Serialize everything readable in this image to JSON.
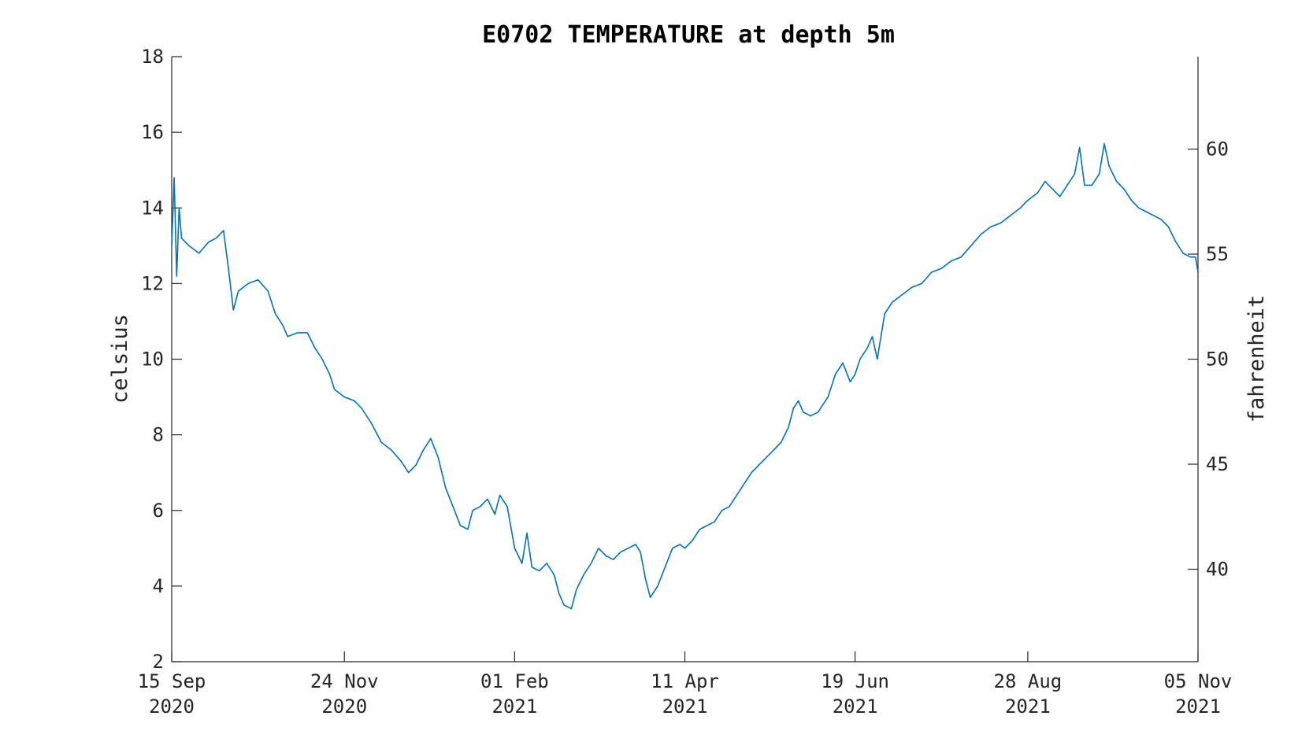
{
  "chart_data": {
    "type": "line",
    "title": "E0702 TEMPERATURE at depth 5m",
    "ylabel": "celsius",
    "y2label": "fahrenheit",
    "xlim": [
      "2020-09-15",
      "2021-11-05"
    ],
    "ylim": [
      2,
      18
    ],
    "y2lim": [
      35.6,
      64.4
    ],
    "grid": false,
    "line_color": "#0072BD",
    "x_ticks": [
      {
        "date": "2020-09-15",
        "line1": "15 Sep",
        "line2": "2020"
      },
      {
        "date": "2020-11-24",
        "line1": "24 Nov",
        "line2": "2020"
      },
      {
        "date": "2021-02-01",
        "line1": "01 Feb",
        "line2": "2021"
      },
      {
        "date": "2021-04-11",
        "line1": "11 Apr",
        "line2": "2021"
      },
      {
        "date": "2021-06-19",
        "line1": "19 Jun",
        "line2": "2021"
      },
      {
        "date": "2021-08-28",
        "line1": "28 Aug",
        "line2": "2021"
      },
      {
        "date": "2021-11-05",
        "line1": "05 Nov",
        "line2": "2021"
      }
    ],
    "y_ticks": [
      2,
      4,
      6,
      8,
      10,
      12,
      14,
      16,
      18
    ],
    "y2_ticks": [
      40,
      45,
      50,
      55,
      60
    ],
    "series": [
      {
        "points": [
          [
            "2020-09-15",
            13.0
          ],
          [
            "2020-09-16",
            14.8
          ],
          [
            "2020-09-17",
            12.2
          ],
          [
            "2020-09-18",
            14.0
          ],
          [
            "2020-09-19",
            13.2
          ],
          [
            "2020-09-22",
            13.0
          ],
          [
            "2020-09-26",
            12.8
          ],
          [
            "2020-09-30",
            13.1
          ],
          [
            "2020-10-03",
            13.2
          ],
          [
            "2020-10-06",
            13.4
          ],
          [
            "2020-10-08",
            12.4
          ],
          [
            "2020-10-10",
            11.3
          ],
          [
            "2020-10-12",
            11.8
          ],
          [
            "2020-10-16",
            12.0
          ],
          [
            "2020-10-20",
            12.1
          ],
          [
            "2020-10-24",
            11.8
          ],
          [
            "2020-10-27",
            11.2
          ],
          [
            "2020-10-30",
            10.9
          ],
          [
            "2020-11-01",
            10.6
          ],
          [
            "2020-11-05",
            10.7
          ],
          [
            "2020-11-09",
            10.7
          ],
          [
            "2020-11-12",
            10.3
          ],
          [
            "2020-11-15",
            10.0
          ],
          [
            "2020-11-18",
            9.6
          ],
          [
            "2020-11-20",
            9.2
          ],
          [
            "2020-11-24",
            9.0
          ],
          [
            "2020-11-28",
            8.9
          ],
          [
            "2020-12-01",
            8.7
          ],
          [
            "2020-12-05",
            8.3
          ],
          [
            "2020-12-09",
            7.8
          ],
          [
            "2020-12-13",
            7.6
          ],
          [
            "2020-12-17",
            7.3
          ],
          [
            "2020-12-20",
            7.0
          ],
          [
            "2020-12-23",
            7.2
          ],
          [
            "2020-12-26",
            7.6
          ],
          [
            "2020-12-29",
            7.9
          ],
          [
            "2021-01-01",
            7.4
          ],
          [
            "2021-01-04",
            6.6
          ],
          [
            "2021-01-07",
            6.1
          ],
          [
            "2021-01-10",
            5.6
          ],
          [
            "2021-01-13",
            5.5
          ],
          [
            "2021-01-15",
            6.0
          ],
          [
            "2021-01-18",
            6.1
          ],
          [
            "2021-01-21",
            6.3
          ],
          [
            "2021-01-24",
            5.9
          ],
          [
            "2021-01-26",
            6.4
          ],
          [
            "2021-01-29",
            6.1
          ],
          [
            "2021-02-01",
            5.0
          ],
          [
            "2021-02-04",
            4.6
          ],
          [
            "2021-02-06",
            5.4
          ],
          [
            "2021-02-08",
            4.5
          ],
          [
            "2021-02-11",
            4.4
          ],
          [
            "2021-02-14",
            4.6
          ],
          [
            "2021-02-17",
            4.3
          ],
          [
            "2021-02-19",
            3.8
          ],
          [
            "2021-02-21",
            3.5
          ],
          [
            "2021-02-24",
            3.4
          ],
          [
            "2021-02-26",
            3.9
          ],
          [
            "2021-03-01",
            4.3
          ],
          [
            "2021-03-04",
            4.6
          ],
          [
            "2021-03-07",
            5.0
          ],
          [
            "2021-03-10",
            4.8
          ],
          [
            "2021-03-13",
            4.7
          ],
          [
            "2021-03-16",
            4.9
          ],
          [
            "2021-03-19",
            5.0
          ],
          [
            "2021-03-22",
            5.1
          ],
          [
            "2021-03-24",
            4.9
          ],
          [
            "2021-03-26",
            4.2
          ],
          [
            "2021-03-28",
            3.7
          ],
          [
            "2021-03-31",
            4.0
          ],
          [
            "2021-04-03",
            4.5
          ],
          [
            "2021-04-06",
            5.0
          ],
          [
            "2021-04-09",
            5.1
          ],
          [
            "2021-04-11",
            5.0
          ],
          [
            "2021-04-14",
            5.2
          ],
          [
            "2021-04-17",
            5.5
          ],
          [
            "2021-04-20",
            5.6
          ],
          [
            "2021-04-23",
            5.7
          ],
          [
            "2021-04-26",
            6.0
          ],
          [
            "2021-04-29",
            6.1
          ],
          [
            "2021-05-02",
            6.4
          ],
          [
            "2021-05-05",
            6.7
          ],
          [
            "2021-05-08",
            7.0
          ],
          [
            "2021-05-11",
            7.2
          ],
          [
            "2021-05-14",
            7.4
          ],
          [
            "2021-05-17",
            7.6
          ],
          [
            "2021-05-20",
            7.8
          ],
          [
            "2021-05-23",
            8.2
          ],
          [
            "2021-05-25",
            8.7
          ],
          [
            "2021-05-27",
            8.9
          ],
          [
            "2021-05-29",
            8.6
          ],
          [
            "2021-06-01",
            8.5
          ],
          [
            "2021-06-04",
            8.6
          ],
          [
            "2021-06-08",
            9.0
          ],
          [
            "2021-06-11",
            9.6
          ],
          [
            "2021-06-14",
            9.9
          ],
          [
            "2021-06-17",
            9.4
          ],
          [
            "2021-06-19",
            9.6
          ],
          [
            "2021-06-21",
            10.0
          ],
          [
            "2021-06-24",
            10.3
          ],
          [
            "2021-06-26",
            10.6
          ],
          [
            "2021-06-28",
            10.0
          ],
          [
            "2021-07-01",
            11.2
          ],
          [
            "2021-07-04",
            11.5
          ],
          [
            "2021-07-08",
            11.7
          ],
          [
            "2021-07-12",
            11.9
          ],
          [
            "2021-07-16",
            12.0
          ],
          [
            "2021-07-20",
            12.3
          ],
          [
            "2021-07-24",
            12.4
          ],
          [
            "2021-07-28",
            12.6
          ],
          [
            "2021-08-01",
            12.7
          ],
          [
            "2021-08-05",
            13.0
          ],
          [
            "2021-08-09",
            13.3
          ],
          [
            "2021-08-13",
            13.5
          ],
          [
            "2021-08-17",
            13.6
          ],
          [
            "2021-08-21",
            13.8
          ],
          [
            "2021-08-25",
            14.0
          ],
          [
            "2021-08-28",
            14.2
          ],
          [
            "2021-09-01",
            14.4
          ],
          [
            "2021-09-04",
            14.7
          ],
          [
            "2021-09-07",
            14.5
          ],
          [
            "2021-09-10",
            14.3
          ],
          [
            "2021-09-13",
            14.6
          ],
          [
            "2021-09-16",
            14.9
          ],
          [
            "2021-09-18",
            15.6
          ],
          [
            "2021-09-20",
            14.6
          ],
          [
            "2021-09-23",
            14.6
          ],
          [
            "2021-09-26",
            14.9
          ],
          [
            "2021-09-28",
            15.7
          ],
          [
            "2021-09-30",
            15.1
          ],
          [
            "2021-10-03",
            14.7
          ],
          [
            "2021-10-06",
            14.5
          ],
          [
            "2021-10-09",
            14.2
          ],
          [
            "2021-10-12",
            14.0
          ],
          [
            "2021-10-15",
            13.9
          ],
          [
            "2021-10-18",
            13.8
          ],
          [
            "2021-10-21",
            13.7
          ],
          [
            "2021-10-24",
            13.5
          ],
          [
            "2021-10-27",
            13.1
          ],
          [
            "2021-10-30",
            12.8
          ],
          [
            "2021-11-02",
            12.7
          ],
          [
            "2021-11-04",
            12.7
          ],
          [
            "2021-11-05",
            12.3
          ]
        ]
      }
    ]
  }
}
